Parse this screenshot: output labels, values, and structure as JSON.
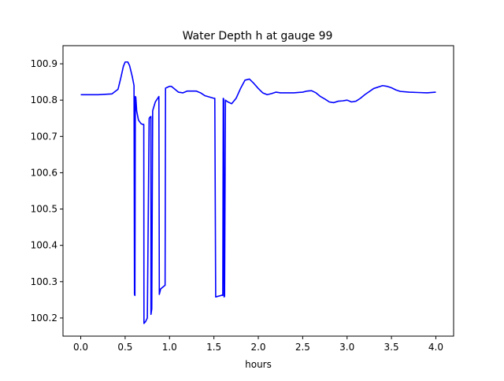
{
  "chart_data": {
    "type": "line",
    "title": "Water Depth h at gauge 99",
    "xlabel": "hours",
    "ylabel": "",
    "xlim": [
      -0.2,
      4.2
    ],
    "ylim": [
      100.15,
      100.95
    ],
    "xticks": [
      0.0,
      0.5,
      1.0,
      1.5,
      2.0,
      2.5,
      3.0,
      3.5,
      4.0
    ],
    "xtick_labels": [
      "0.0",
      "0.5",
      "1.0",
      "1.5",
      "2.0",
      "2.5",
      "3.0",
      "3.5",
      "4.0"
    ],
    "yticks": [
      100.2,
      100.3,
      100.4,
      100.5,
      100.6,
      100.7,
      100.8,
      100.9
    ],
    "ytick_labels": [
      "100.2",
      "100.3",
      "100.4",
      "100.5",
      "100.6",
      "100.7",
      "100.8",
      "100.9"
    ],
    "grid": false,
    "series": [
      {
        "color": "#0000ff",
        "x": [
          0.0,
          0.2,
          0.35,
          0.42,
          0.45,
          0.48,
          0.5,
          0.53,
          0.55,
          0.58,
          0.6,
          0.605,
          0.61,
          0.615,
          0.62,
          0.625,
          0.63,
          0.65,
          0.68,
          0.7,
          0.71,
          0.712,
          0.73,
          0.75,
          0.77,
          0.771,
          0.78,
          0.79,
          0.791,
          0.8,
          0.81,
          0.815,
          0.84,
          0.88,
          0.885,
          0.9,
          0.95,
          0.955,
          1.0,
          1.02,
          1.05,
          1.1,
          1.15,
          1.2,
          1.3,
          1.35,
          1.4,
          1.5,
          1.51,
          1.52,
          1.58,
          1.59,
          1.6,
          1.605,
          1.61,
          1.615,
          1.62,
          1.63,
          1.65,
          1.7,
          1.75,
          1.8,
          1.85,
          1.9,
          1.95,
          2.0,
          2.05,
          2.1,
          2.15,
          2.2,
          2.25,
          2.3,
          2.4,
          2.5,
          2.55,
          2.6,
          2.65,
          2.7,
          2.75,
          2.8,
          2.85,
          2.9,
          2.95,
          3.0,
          3.05,
          3.1,
          3.15,
          3.2,
          3.3,
          3.4,
          3.45,
          3.5,
          3.55,
          3.6,
          3.7,
          3.8,
          3.9,
          4.0
        ],
        "y": [
          100.815,
          100.815,
          100.817,
          100.83,
          100.86,
          100.893,
          100.905,
          100.905,
          100.895,
          100.865,
          100.84,
          100.265,
          100.262,
          100.81,
          100.808,
          100.79,
          100.77,
          100.745,
          100.735,
          100.733,
          100.733,
          100.185,
          100.19,
          100.2,
          100.745,
          100.75,
          100.753,
          100.755,
          100.21,
          100.225,
          100.77,
          100.775,
          100.795,
          100.81,
          100.265,
          100.28,
          100.29,
          100.833,
          100.838,
          100.838,
          100.832,
          100.822,
          100.82,
          100.825,
          100.825,
          100.82,
          100.812,
          100.805,
          100.805,
          100.258,
          100.262,
          100.263,
          100.262,
          100.805,
          100.803,
          100.258,
          100.26,
          100.8,
          100.796,
          100.79,
          100.805,
          100.832,
          100.855,
          100.858,
          100.846,
          100.832,
          100.82,
          100.815,
          100.818,
          100.822,
          100.82,
          100.82,
          100.82,
          100.822,
          100.825,
          100.826,
          100.82,
          100.81,
          100.803,
          100.795,
          100.793,
          100.797,
          100.798,
          100.8,
          100.795,
          100.797,
          100.805,
          100.815,
          100.832,
          100.84,
          100.838,
          100.834,
          100.828,
          100.824,
          100.822,
          100.821,
          100.82,
          100.822
        ]
      }
    ]
  }
}
